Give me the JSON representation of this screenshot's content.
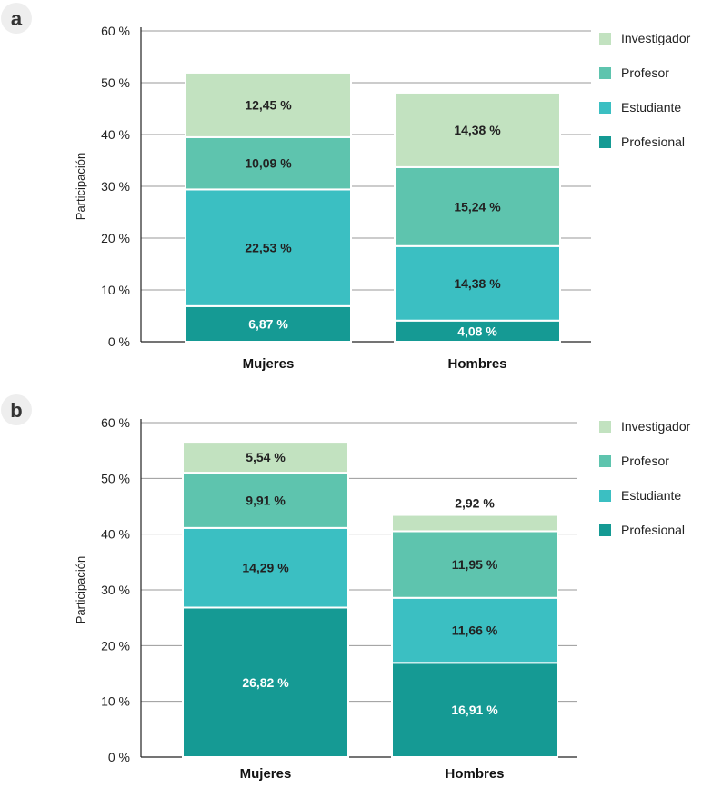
{
  "chart_data": [
    {
      "type": "bar",
      "stacked": true,
      "panel": "a",
      "categories": [
        "Mujeres",
        "Hombres"
      ],
      "ylabel": "Participación",
      "ylim": [
        0,
        60
      ],
      "yticks": [
        "0 %",
        "10 %",
        "20 %",
        "30 %",
        "40 %",
        "50 %",
        "60 %"
      ],
      "grid": true,
      "legend_position": "right",
      "series": [
        {
          "name": "Profesional",
          "color": "#159a94",
          "values": [
            6.87,
            4.08
          ],
          "labels": [
            "6,87 %",
            "4,08 %"
          ]
        },
        {
          "name": "Estudiante",
          "color": "#3bbfc2",
          "values": [
            22.53,
            14.38
          ],
          "labels": [
            "22,53 %",
            "14,38 %"
          ]
        },
        {
          "name": "Profesor",
          "color": "#5ec4ae",
          "values": [
            10.09,
            15.24
          ],
          "labels": [
            "10,09 %",
            "15,24 %"
          ]
        },
        {
          "name": "Investigador",
          "color": "#c2e2c0",
          "values": [
            12.45,
            14.38
          ],
          "labels": [
            "12,45 %",
            "14,38 %"
          ]
        }
      ]
    },
    {
      "type": "bar",
      "stacked": true,
      "panel": "b",
      "categories": [
        "Mujeres",
        "Hombres"
      ],
      "ylabel": "Participación",
      "ylim": [
        0,
        60
      ],
      "yticks": [
        "0 %",
        "10 %",
        "20 %",
        "30 %",
        "40 %",
        "50 %",
        "60 %"
      ],
      "grid": true,
      "legend_position": "right",
      "series": [
        {
          "name": "Profesional",
          "color": "#159a94",
          "values": [
            26.82,
            16.91
          ],
          "labels": [
            "26,82 %",
            "16,91 %"
          ]
        },
        {
          "name": "Estudiante",
          "color": "#3bbfc2",
          "values": [
            14.29,
            11.66
          ],
          "labels": [
            "14,29 %",
            "11,66 %"
          ]
        },
        {
          "name": "Profesor",
          "color": "#5ec4ae",
          "values": [
            9.91,
            11.95
          ],
          "labels": [
            "9,91 %",
            "11,95 %"
          ]
        },
        {
          "name": "Investigador",
          "color": "#c2e2c0",
          "values": [
            5.54,
            2.92
          ],
          "labels": [
            "5,54 %",
            "2,92 %"
          ]
        }
      ]
    }
  ]
}
